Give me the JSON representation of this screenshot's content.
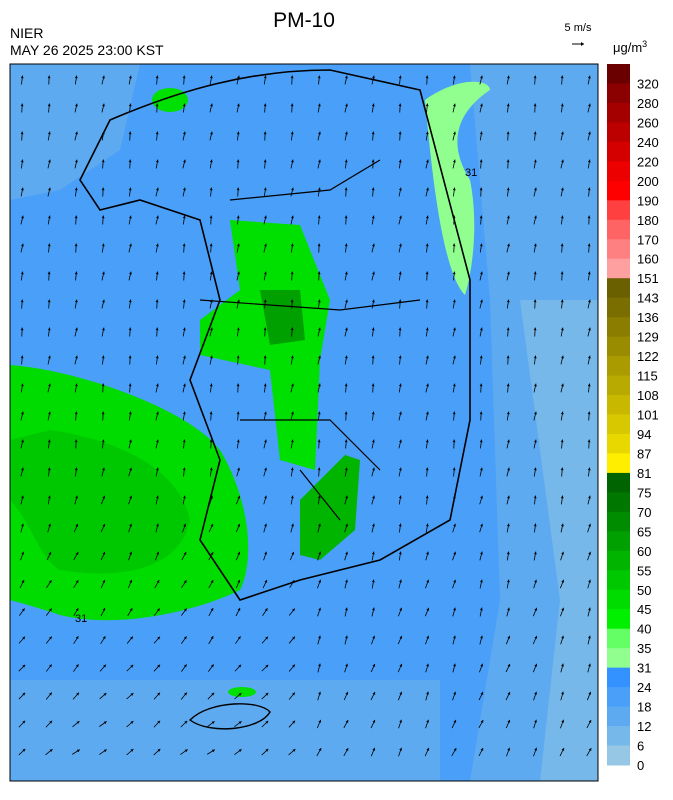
{
  "header": {
    "title": "PM-10",
    "agency": "NIER",
    "timestamp": "MAY 26 2025 23:00 KST"
  },
  "wind_scale": {
    "label": "5 m/s"
  },
  "map": {
    "contour_label": "31"
  },
  "colorbar": {
    "unit": {
      "base": "μg/m",
      "exponent": "3"
    },
    "levels": [
      {
        "label": 320,
        "color": "#6b0000"
      },
      {
        "label": 280,
        "color": "#8b0000"
      },
      {
        "label": 260,
        "color": "#a40000"
      },
      {
        "label": 240,
        "color": "#bc0000"
      },
      {
        "label": 220,
        "color": "#d40000"
      },
      {
        "label": 200,
        "color": "#ec0000"
      },
      {
        "label": 190,
        "color": "#ff0000"
      },
      {
        "label": 180,
        "color": "#ff4040"
      },
      {
        "label": 170,
        "color": "#ff6464"
      },
      {
        "label": 160,
        "color": "#ff8080"
      },
      {
        "label": 151,
        "color": "#ffa0a0"
      },
      {
        "label": 143,
        "color": "#6b6000"
      },
      {
        "label": 136,
        "color": "#7a6e00"
      },
      {
        "label": 129,
        "color": "#8a7d00"
      },
      {
        "label": 122,
        "color": "#998c00"
      },
      {
        "label": 115,
        "color": "#a99b00"
      },
      {
        "label": 108,
        "color": "#b8aa00"
      },
      {
        "label": 101,
        "color": "#c8b900"
      },
      {
        "label": 94,
        "color": "#d8c800"
      },
      {
        "label": 87,
        "color": "#e8d800"
      },
      {
        "label": 81,
        "color": "#ffee00"
      },
      {
        "label": 75,
        "color": "#006400"
      },
      {
        "label": 70,
        "color": "#007800"
      },
      {
        "label": 65,
        "color": "#008c00"
      },
      {
        "label": 60,
        "color": "#00a000"
      },
      {
        "label": 55,
        "color": "#00b400"
      },
      {
        "label": 50,
        "color": "#00c800"
      },
      {
        "label": 45,
        "color": "#00dc00"
      },
      {
        "label": 40,
        "color": "#00f000"
      },
      {
        "label": 35,
        "color": "#64ff64"
      },
      {
        "label": 31,
        "color": "#90ff90"
      },
      {
        "label": 24,
        "color": "#3392ff"
      },
      {
        "label": 18,
        "color": "#4a9ff8"
      },
      {
        "label": 12,
        "color": "#5eaaf0"
      },
      {
        "label": 6,
        "color": "#76b8ea"
      },
      {
        "label": 0,
        "color": "#96c8e6"
      }
    ]
  }
}
